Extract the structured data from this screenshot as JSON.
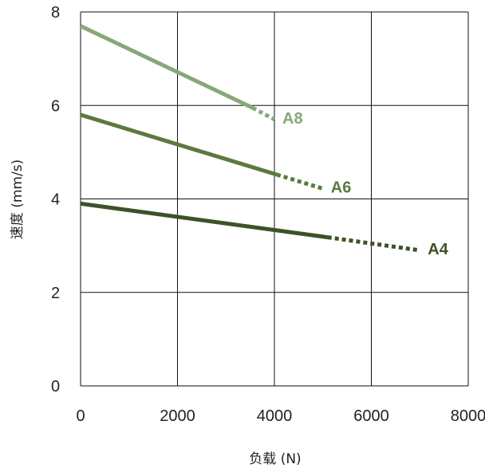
{
  "chart_data": {
    "type": "line",
    "title": "",
    "xlabel": "负载 (N)",
    "ylabel": "速度 (mm/s)",
    "xlim": [
      0,
      8000
    ],
    "ylim": [
      0,
      8
    ],
    "xticks": [
      "0",
      "2000",
      "4000",
      "6000",
      "8000"
    ],
    "yticks": [
      "0",
      "2",
      "4",
      "6",
      "8"
    ],
    "grid": true,
    "series": [
      {
        "name": "A8",
        "color": "#87a878",
        "solid": [
          [
            0,
            7.7
          ],
          [
            3550,
            5.95
          ]
        ],
        "dotted": [
          [
            3550,
            5.95
          ],
          [
            4000,
            5.7
          ]
        ]
      },
      {
        "name": "A6",
        "color": "#5a7a3e",
        "solid": [
          [
            0,
            5.8
          ],
          [
            4050,
            4.52
          ]
        ],
        "dotted": [
          [
            4050,
            4.52
          ],
          [
            5000,
            4.22
          ]
        ]
      },
      {
        "name": "A4",
        "color": "#3d5226",
        "solid": [
          [
            0,
            3.9
          ],
          [
            5100,
            3.18
          ]
        ],
        "dotted": [
          [
            5100,
            3.18
          ],
          [
            7000,
            2.9
          ]
        ]
      }
    ]
  }
}
